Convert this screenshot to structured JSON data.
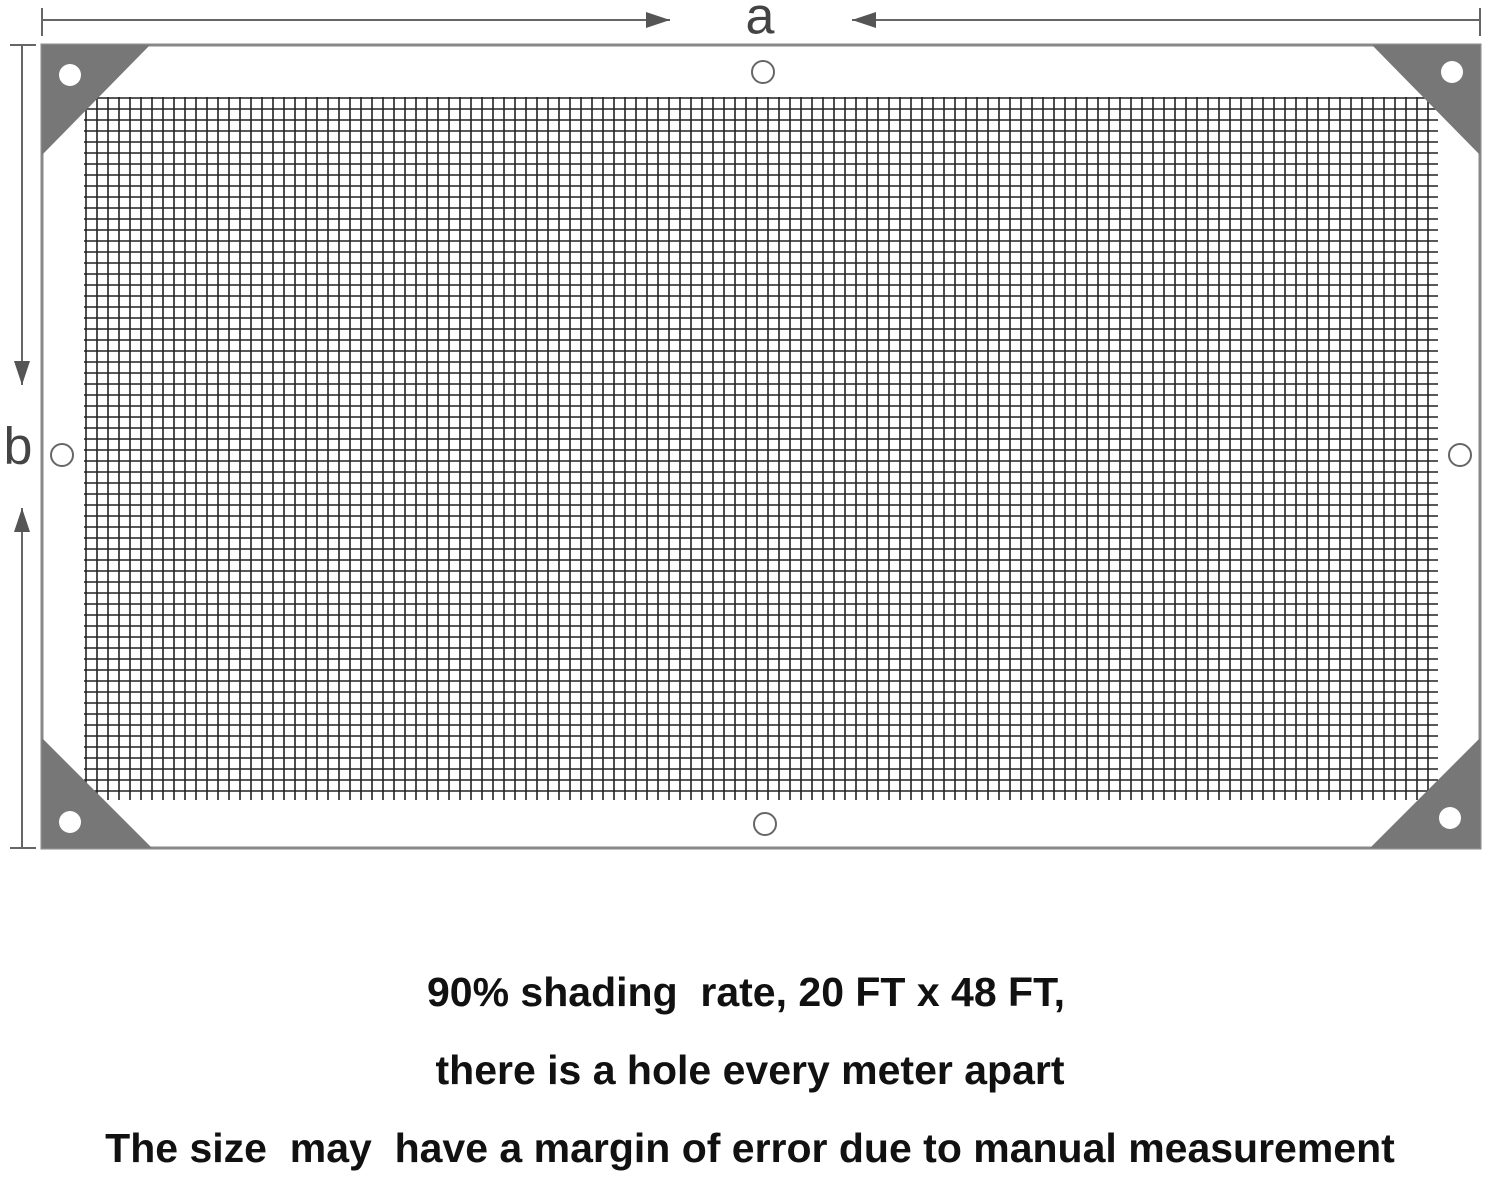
{
  "diagram": {
    "labels": {
      "width": "a",
      "height": "b"
    }
  },
  "caption": {
    "lines": [
      "90% shading  rate, 20 FT x 48 FT,",
      "there is a hole every meter apart",
      "The size  may  have a margin of error due to manual measurement"
    ]
  }
}
